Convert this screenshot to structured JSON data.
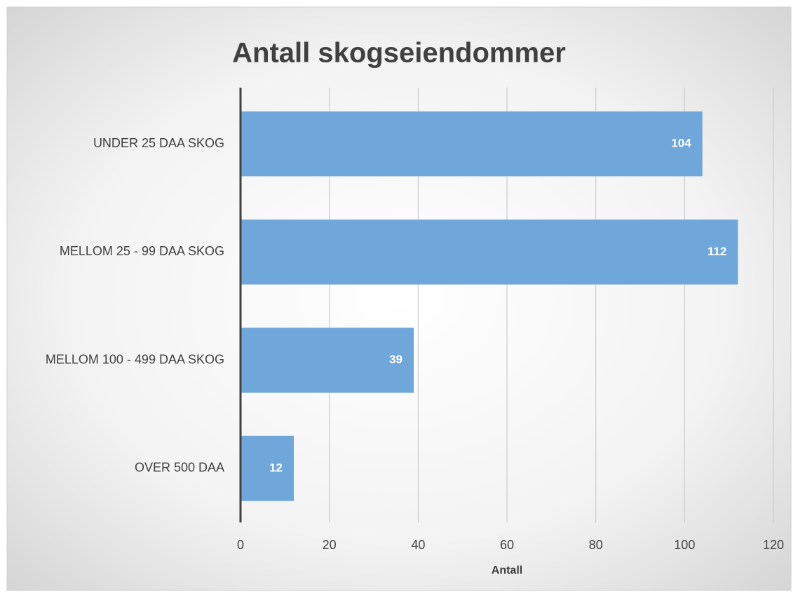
{
  "chart_data": {
    "type": "bar",
    "orientation": "horizontal",
    "title": "Antall skogseiendommer",
    "x_label": "Antall",
    "categories": [
      "UNDER 25 DAA SKOG",
      "MELLOM 25 - 99 DAA SKOG",
      "MELLOM 100 - 499 DAA SKOG",
      "OVER 500 DAA"
    ],
    "values": [
      104,
      112,
      39,
      12
    ],
    "color": "#70a7db",
    "xlim": [
      0,
      120
    ],
    "xticks": [
      0,
      20,
      40,
      60,
      80,
      100,
      120
    ],
    "grid": true
  }
}
